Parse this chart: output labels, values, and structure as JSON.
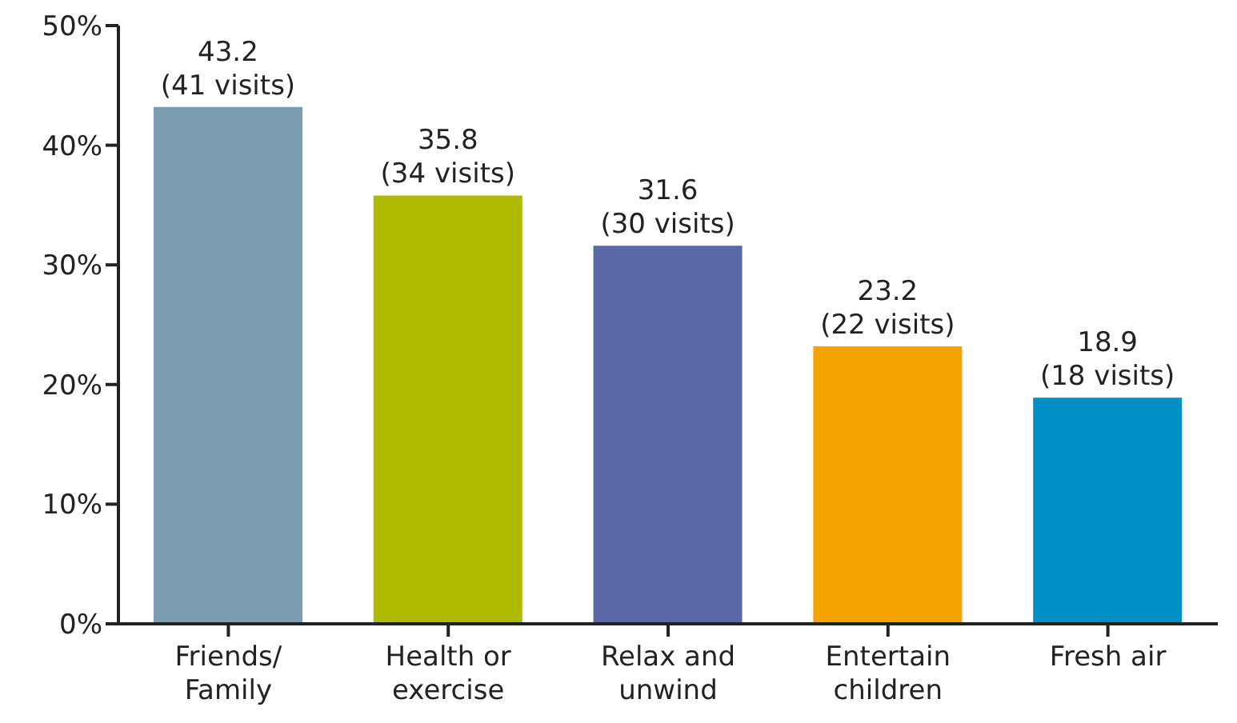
{
  "chart_data": {
    "type": "bar",
    "categories": [
      "Friends/ Family",
      "Health or exercise",
      "Relax and unwind",
      "Entertain children",
      "Fresh air"
    ],
    "values": [
      43.2,
      35.8,
      31.6,
      23.2,
      18.9
    ],
    "colors": [
      "#7a9bb0",
      "#afbb00",
      "#5b68a8",
      "#f5a300",
      "#0090c6"
    ],
    "value_labels": [
      "43.2 (41 visits)",
      "35.8 (34 visits)",
      "31.6 (30 visits)",
      "23.2 (22 visits)",
      "18.9 (18 visits)"
    ],
    "ylim": [
      0,
      50
    ],
    "yticks": [
      {
        "value": 0,
        "label": "0%"
      },
      {
        "value": 10,
        "label": "10%"
      },
      {
        "value": 20,
        "label": "20%"
      },
      {
        "value": 30,
        "label": "30%"
      },
      {
        "value": 40,
        "label": "40%"
      },
      {
        "value": 50,
        "label": "50%"
      }
    ],
    "grid": false,
    "legend": false
  }
}
